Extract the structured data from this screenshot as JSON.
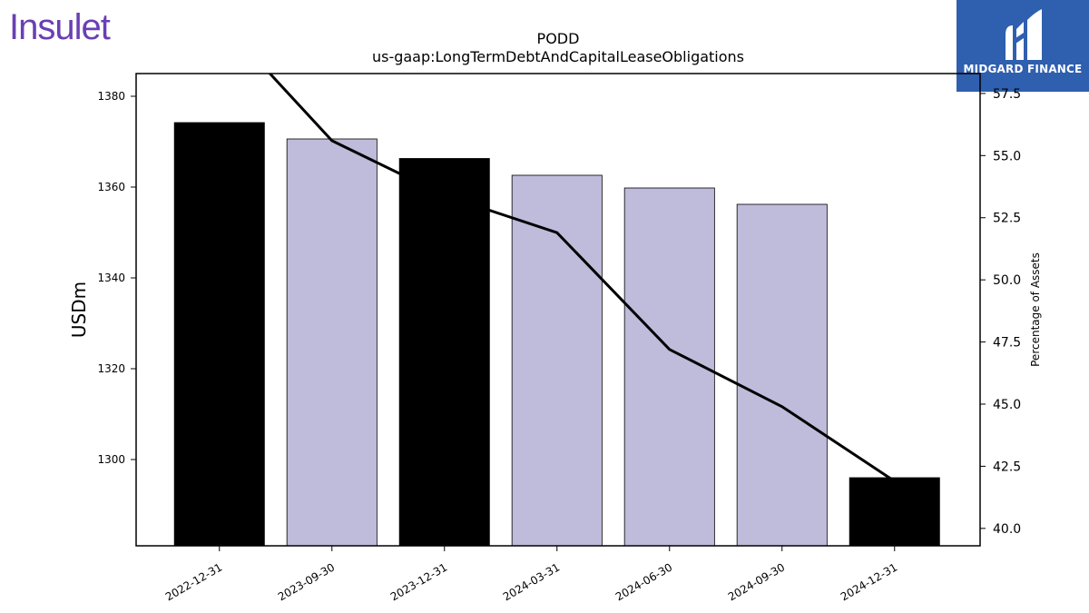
{
  "brand": {
    "company_logo": "Insulet",
    "badge_label": "MIDGARD FINANCE"
  },
  "colors": {
    "logo": "#6a3fb3",
    "badge": "#2f5faf",
    "bar_dark": "#000000",
    "bar_light": "#bebbdb",
    "line": "#000000"
  },
  "chart_data": {
    "type": "bar",
    "title": "PODD",
    "subtitle": "us-gaap:LongTermDebtAndCapitalLeaseObligations",
    "ylabel": "USDm",
    "y2label": "Percentage of Assets",
    "categories": [
      "2022-12-31",
      "2023-09-30",
      "2023-12-31",
      "2024-03-31",
      "2024-06-30",
      "2024-09-30",
      "2024-12-31"
    ],
    "series": [
      {
        "values": [
          1374.2,
          1370.6,
          1366.3,
          1362.6,
          1359.8,
          1356.2,
          1296.0
        ],
        "axis": "left"
      },
      {
        "type": "line",
        "values": [
          60.5,
          55.6,
          53.4,
          51.9,
          47.2,
          44.9,
          41.9
        ],
        "axis": "right"
      }
    ],
    "bar_colors": [
      "dark",
      "light",
      "dark",
      "light",
      "light",
      "light",
      "dark"
    ],
    "ylim": [
      1281,
      1385
    ],
    "y2lim": [
      39.3,
      58.3
    ],
    "yticks": [
      "1300",
      "1320",
      "1340",
      "1360",
      "1380"
    ],
    "y2ticks": [
      "40.0",
      "42.5",
      "45.0",
      "47.5",
      "50.0",
      "52.5",
      "55.0",
      "57.5"
    ],
    "grid": false,
    "legend": "none"
  }
}
